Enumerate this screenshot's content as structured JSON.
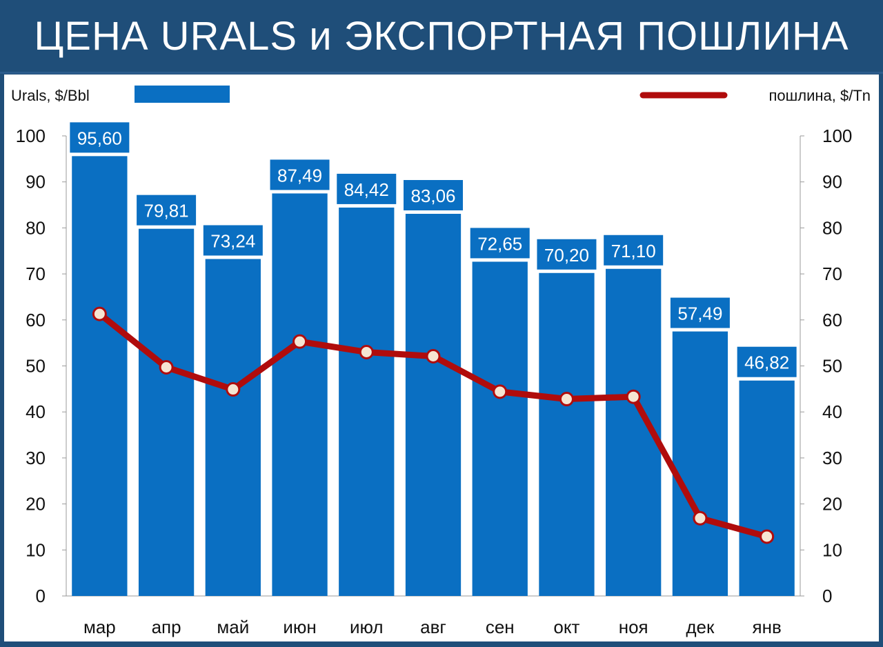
{
  "title": "ЦЕНА URALS и ЭКСПОРТНАЯ ПОШЛИНА",
  "legend": {
    "bar_label": "Urals, $/Bbl",
    "line_label": "пошлина, $/Tn"
  },
  "colors": {
    "bar": "#0a6fc2",
    "line": "#b00c0c",
    "marker_fill": "#f6e5d2",
    "background": "#1f4e79"
  },
  "chart_data": {
    "type": "bar",
    "title": "ЦЕНА URALS и ЭКСПОРТНАЯ ПОШЛИНА",
    "categories": [
      "мар",
      "апр",
      "май",
      "июн",
      "июл",
      "авг",
      "сен",
      "окт",
      "ноя",
      "дек",
      "янв"
    ],
    "series": [
      {
        "name": "Urals, $/Bbl",
        "type": "bar",
        "axis": "left",
        "values": [
          95.6,
          79.81,
          73.24,
          87.49,
          84.42,
          83.06,
          72.65,
          70.2,
          71.1,
          57.49,
          46.82
        ],
        "labels": [
          "95,60",
          "79,81",
          "73,24",
          "87,49",
          "84,42",
          "83,06",
          "72,65",
          "70,20",
          "71,10",
          "57,49",
          "46,82"
        ]
      },
      {
        "name": "пошлина, $/Tn",
        "type": "line",
        "axis": "right",
        "values": [
          61.3,
          49.7,
          44.9,
          55.3,
          53.0,
          52.1,
          44.4,
          42.8,
          43.3,
          16.9,
          12.9
        ]
      }
    ],
    "y_left": {
      "label": "Urals, $/Bbl",
      "ylim": [
        0,
        100
      ],
      "ticks": [
        "0",
        "10",
        "20",
        "30",
        "40",
        "50",
        "60",
        "70",
        "80",
        "90",
        "100"
      ]
    },
    "y_right": {
      "label": "пошлина, $/Tn",
      "ylim": [
        0,
        100
      ],
      "ticks": [
        "0",
        "10",
        "20",
        "30",
        "40",
        "50",
        "60",
        "70",
        "80",
        "90",
        "100"
      ]
    },
    "grid": false,
    "legend_position": "top"
  }
}
